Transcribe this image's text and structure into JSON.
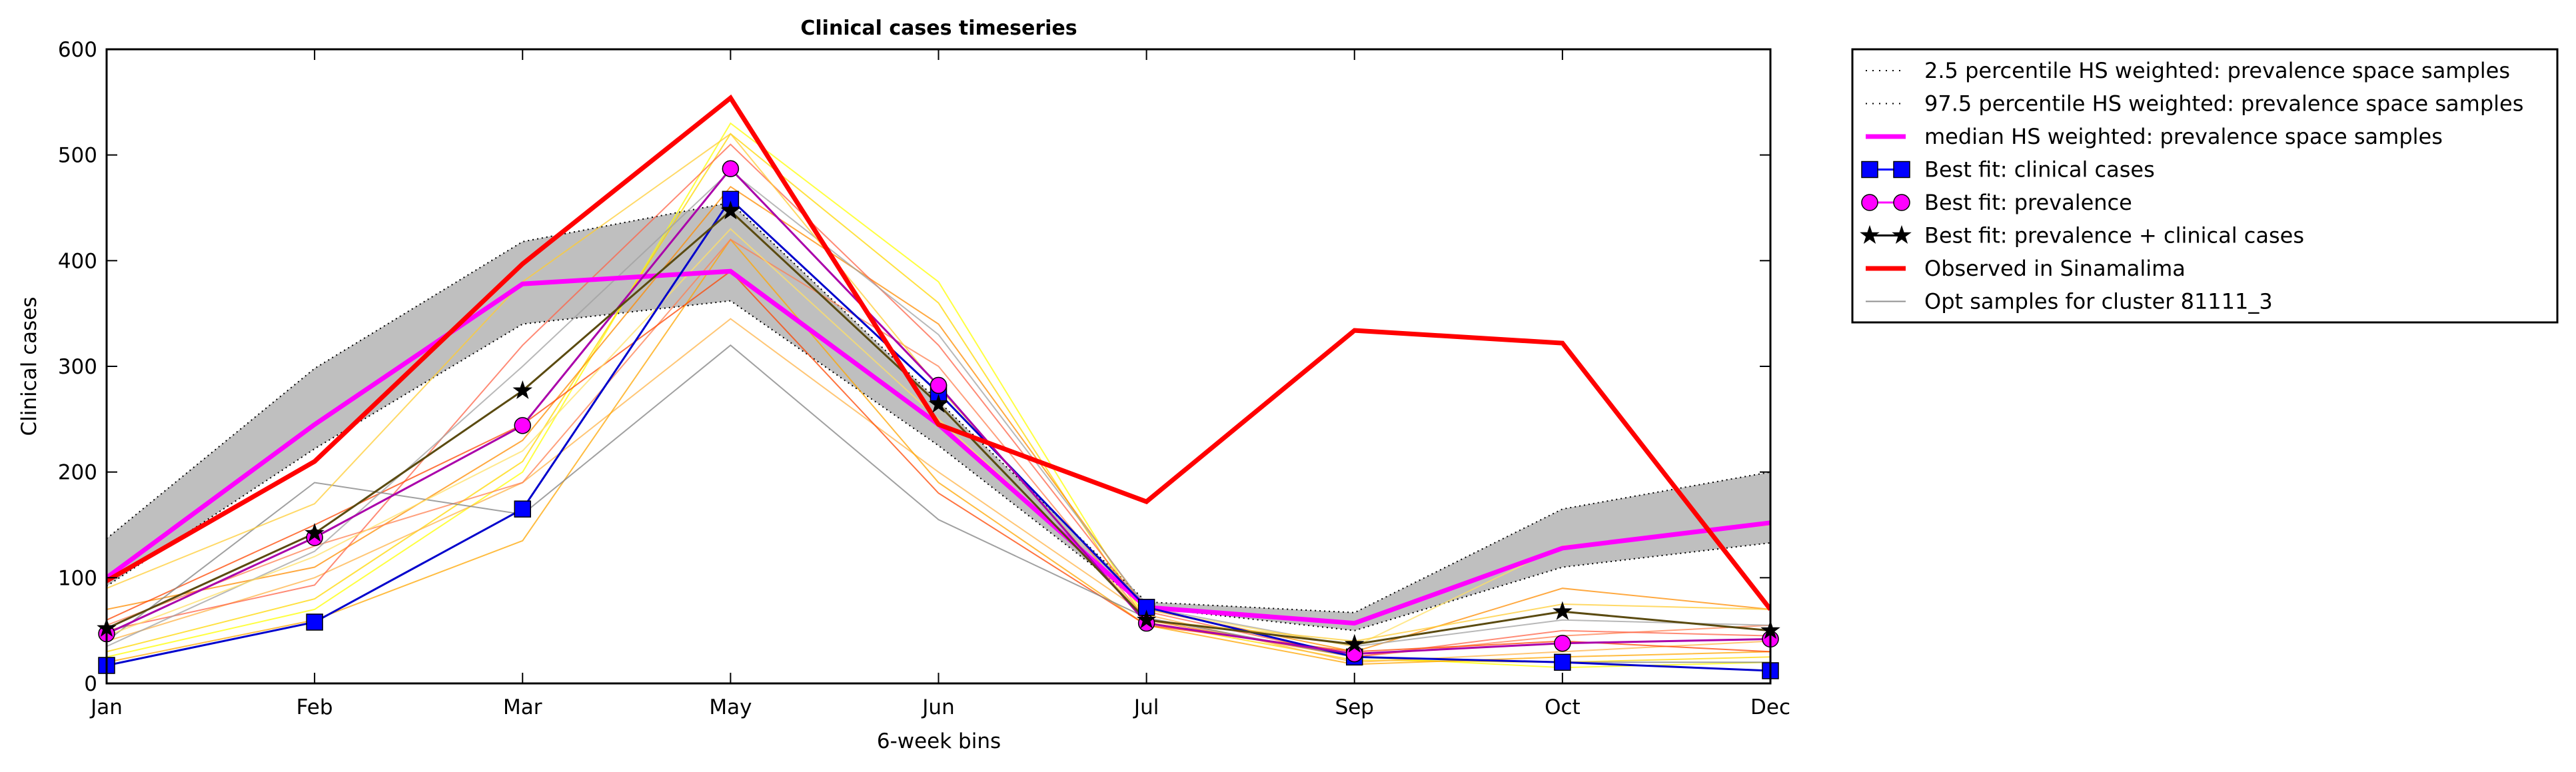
{
  "chart_data": {
    "type": "line",
    "title": "Clinical cases timeseries",
    "xlabel": "6-week bins",
    "ylabel": "Clinical cases",
    "categories": [
      "Jan",
      "Feb",
      "Mar",
      "May",
      "Jun",
      "Jul",
      "Sep",
      "Oct",
      "Dec"
    ],
    "ylim": [
      0,
      600
    ],
    "yticks": [
      0,
      100,
      200,
      300,
      400,
      500,
      600
    ],
    "grid": false,
    "legend_position": "outside right, top",
    "band": {
      "lower_name": "2.5 percentile HS weighted: prevalence space samples",
      "upper_name": "97.5 percentile HS weighted: prevalence space samples",
      "lower": [
        92,
        222,
        340,
        362,
        225,
        72,
        50,
        110,
        133
      ],
      "upper": [
        137,
        298,
        418,
        455,
        267,
        77,
        67,
        165,
        200
      ],
      "fill_color": "#bfbfbf"
    },
    "opt_samples": {
      "name": "Opt samples for cluster 81111_3",
      "colors": [
        "#ffff00",
        "#ffd700",
        "#ffb347",
        "#ffa500",
        "#ff8c00",
        "#ff7f50",
        "#ff6347",
        "#ff4500",
        "#808080",
        "#a0a0a0",
        "#ffe066",
        "#ffcc33"
      ],
      "values": [
        [
          25,
          70,
          200,
          530,
          380,
          60,
          25,
          15,
          20
        ],
        [
          30,
          80,
          210,
          520,
          360,
          58,
          22,
          20,
          25
        ],
        [
          40,
          100,
          190,
          345,
          200,
          65,
          20,
          30,
          40
        ],
        [
          20,
          60,
          135,
          420,
          190,
          55,
          18,
          25,
          30
        ],
        [
          70,
          110,
          230,
          470,
          340,
          70,
          30,
          90,
          70
        ],
        [
          55,
          130,
          190,
          420,
          300,
          60,
          25,
          45,
          55
        ],
        [
          50,
          93,
          320,
          510,
          320,
          68,
          25,
          50,
          45
        ],
        [
          60,
          150,
          245,
          390,
          180,
          55,
          30,
          40,
          30
        ],
        [
          40,
          190,
          160,
          320,
          155,
          62,
          25,
          20,
          20
        ],
        [
          35,
          125,
          300,
          485,
          330,
          72,
          35,
          60,
          55
        ],
        [
          45,
          120,
          220,
          430,
          250,
          70,
          35,
          130,
          150
        ],
        [
          90,
          170,
          380,
          520,
          280,
          60,
          40,
          75,
          70
        ]
      ]
    },
    "series": [
      {
        "name": "median HS weighted: prevalence space samples",
        "color": "#ff00ff",
        "marker": "none",
        "values": [
          100,
          245,
          378,
          390,
          245,
          72,
          57,
          128,
          152
        ]
      },
      {
        "name": "Best fit: clinical cases",
        "color": "#0000ff",
        "marker": "square",
        "values": [
          17,
          58,
          165,
          458,
          275,
          72,
          25,
          20,
          12
        ]
      },
      {
        "name": "Best fit: prevalence",
        "color": "#ff00ff",
        "marker": "circle",
        "values": [
          47,
          138,
          244,
          487,
          282,
          57,
          28,
          38,
          42
        ]
      },
      {
        "name": "Best fit: prevalence + clinical cases",
        "color": "#000000",
        "marker": "star",
        "values": [
          52,
          142,
          277,
          447,
          264,
          60,
          37,
          68,
          50
        ]
      },
      {
        "name": "Observed in Sinamalima",
        "color": "#ff0000",
        "marker": "none",
        "values": [
          97,
          210,
          397,
          554,
          245,
          172,
          334,
          322,
          70
        ]
      }
    ]
  }
}
